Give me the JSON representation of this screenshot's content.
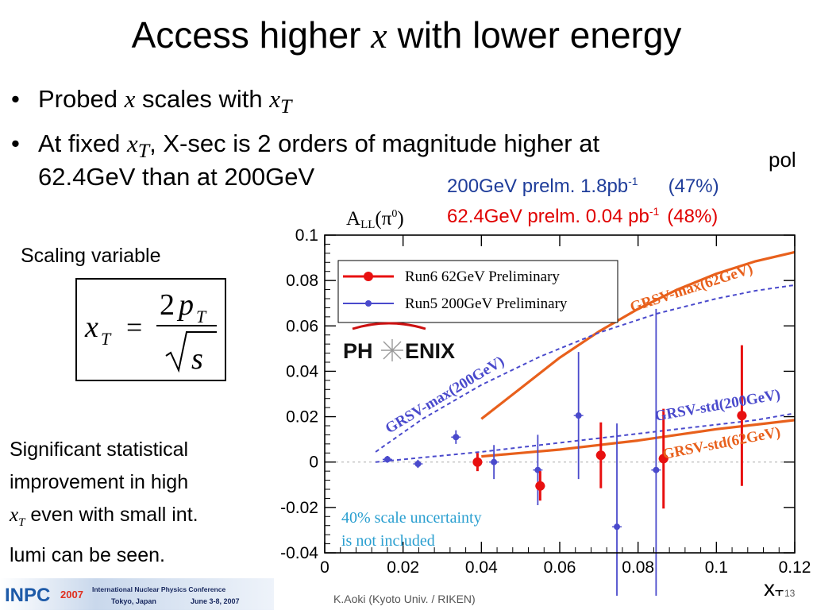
{
  "slide": {
    "title_pre": "Access higher",
    "title_sym": "x",
    "title_post": "with lower energy",
    "bullet1": {
      "pre": "Probed",
      "sym1": "x",
      "mid": "scales with",
      "sym2": "x",
      "sub2": "T"
    },
    "bullet2": {
      "pre": "At fixed",
      "sym": "x",
      "sub": "T",
      "post": ", X-sec is 2 orders of magnitude higher at",
      "line2": "62.4GeV than at 200GeV"
    },
    "pol_label": "pol",
    "blue_legend": {
      "text": "200GeV  prelm.  1.8pb",
      "sup": "-1",
      "pol": "(47%)"
    },
    "red_legend": {
      "text": "62.4GeV prelm.  0.04 pb",
      "sup": "-1",
      "pol": "(48%)"
    },
    "scaling_label": "Scaling variable",
    "formula": {
      "lhs": "x",
      "lhs_sub": "T",
      "eq": "=",
      "num": "2",
      "num_sym": "p",
      "num_sub": "T",
      "den": "s"
    },
    "note": {
      "line1": "Significant statistical",
      "line2": "improvement in high",
      "sym": "x",
      "sub": "T",
      "line3_post": " even with small int.",
      "line4": "lumi can be seen."
    },
    "footer": {
      "logo_text": "INPC",
      "logo_year": "2007",
      "conf_name": "International Nuclear Physics Conference",
      "conf_place": "Tokyo, Japan",
      "conf_dates": "June 3-8, 2007",
      "credit": "K.Aoki (Kyoto Univ. / RIKEN)",
      "page": "13"
    }
  },
  "colors": {
    "blue": "#4a4acc",
    "red": "#e81010",
    "orange": "#e8601c",
    "annotation": "#2a9fd0",
    "text_blue": "#1f3d9a",
    "text_red": "#e00000"
  },
  "chart_data": {
    "type": "scatter",
    "ylabel": "A",
    "ylabel_sub": "LL",
    "ylabel_paren": "(π",
    "ylabel_sup": "0",
    "ylabel_close": ")",
    "xlabel": "x",
    "xlabel_sub": "T",
    "xlim": [
      0,
      0.12
    ],
    "ylim": [
      -0.04,
      0.1
    ],
    "xticks": [
      "0",
      "0.02",
      "0.04",
      "0.06",
      "0.08",
      "0.1",
      "0.12"
    ],
    "yticks": [
      "-0.04",
      "-0.02",
      "0",
      "0.02",
      "0.04",
      "0.06",
      "0.08",
      "0.1"
    ],
    "legend": {
      "position": "top-left",
      "entries": [
        "Run6  62GeV Preliminary",
        "Run5 200GeV Preliminary"
      ]
    },
    "logo_text": {
      "pre": "PH",
      "post": "ENIX"
    },
    "series": [
      {
        "name": "Run6  62GeV Preliminary",
        "color": "#e81010",
        "x": [
          0.039,
          0.055,
          0.0705,
          0.0865,
          0.1065
        ],
        "y": [
          0.0,
          -0.0105,
          0.003,
          0.0015,
          0.0205
        ],
        "err": [
          0.004,
          0.0065,
          0.0145,
          0.022,
          0.031
        ]
      },
      {
        "name": "Run5 200GeV Preliminary",
        "color": "#4a4acc",
        "x": [
          0.016,
          0.0238,
          0.0335,
          0.0432,
          0.0544,
          0.0648,
          0.0746,
          0.0846
        ],
        "y": [
          0.0012,
          -0.0008,
          0.011,
          0.0,
          -0.0035,
          0.0205,
          -0.0285,
          -0.0035
        ],
        "err": [
          0.0015,
          0.0018,
          0.003,
          0.0075,
          0.0155,
          0.028,
          0.0455,
          0.071
        ]
      }
    ],
    "curves": [
      {
        "label": "GRSV-max(62GeV)",
        "color": "#e8601c",
        "dashed": false,
        "x": [
          0.04,
          0.05,
          0.06,
          0.07,
          0.08,
          0.09,
          0.1,
          0.11,
          0.12
        ],
        "y": [
          0.019,
          0.0325,
          0.046,
          0.0575,
          0.0675,
          0.076,
          0.083,
          0.0885,
          0.0925
        ]
      },
      {
        "label": "GRSV-std(62GeV)",
        "color": "#e8601c",
        "dashed": false,
        "x": [
          0.04,
          0.05,
          0.06,
          0.07,
          0.08,
          0.09,
          0.1,
          0.11,
          0.12
        ],
        "y": [
          0.0025,
          0.004,
          0.0055,
          0.0075,
          0.0095,
          0.012,
          0.0145,
          0.0165,
          0.0185
        ]
      },
      {
        "label": "GRSV-max(200GeV)",
        "color": "#4a4acc",
        "dashed": true,
        "x": [
          0.013,
          0.025,
          0.04,
          0.055,
          0.07,
          0.085,
          0.1,
          0.11,
          0.12
        ],
        "y": [
          0.0045,
          0.019,
          0.034,
          0.0465,
          0.057,
          0.0655,
          0.072,
          0.0755,
          0.078
        ]
      },
      {
        "label": "GRSV-std(200GeV)",
        "color": "#4a4acc",
        "dashed": true,
        "x": [
          0.013,
          0.025,
          0.04,
          0.055,
          0.07,
          0.085,
          0.1,
          0.11,
          0.12
        ],
        "y": [
          0.0,
          0.002,
          0.0045,
          0.0075,
          0.0105,
          0.0135,
          0.0165,
          0.0185,
          0.0215
        ]
      }
    ],
    "annotation": {
      "line1": "40% scale uncertainty",
      "line2": "is not included"
    }
  }
}
